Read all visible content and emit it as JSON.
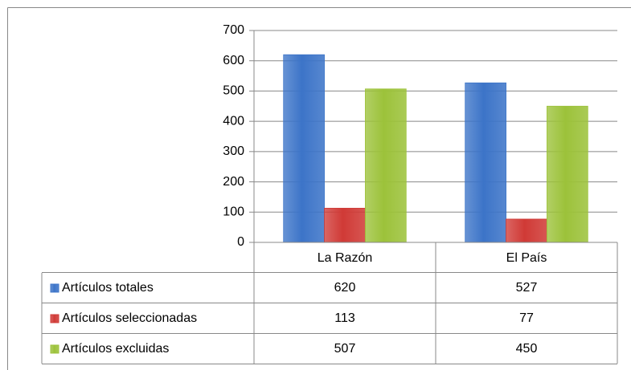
{
  "chart_data": {
    "type": "bar",
    "categories": [
      "La Razón",
      "El País"
    ],
    "series": [
      {
        "name": "Artículos totales",
        "color": "#3c74c8",
        "values": [
          620,
          527
        ]
      },
      {
        "name": "Artículos seleccionadas",
        "color": "#d03a36",
        "values": [
          113,
          77
        ]
      },
      {
        "name": "Artículos excluidas",
        "color": "#9cc23a",
        "values": [
          507,
          450
        ]
      }
    ],
    "ylim": [
      0,
      700
    ],
    "yticks": [
      0,
      100,
      200,
      300,
      400,
      500,
      600,
      700
    ],
    "grid": true,
    "data_table": true
  }
}
